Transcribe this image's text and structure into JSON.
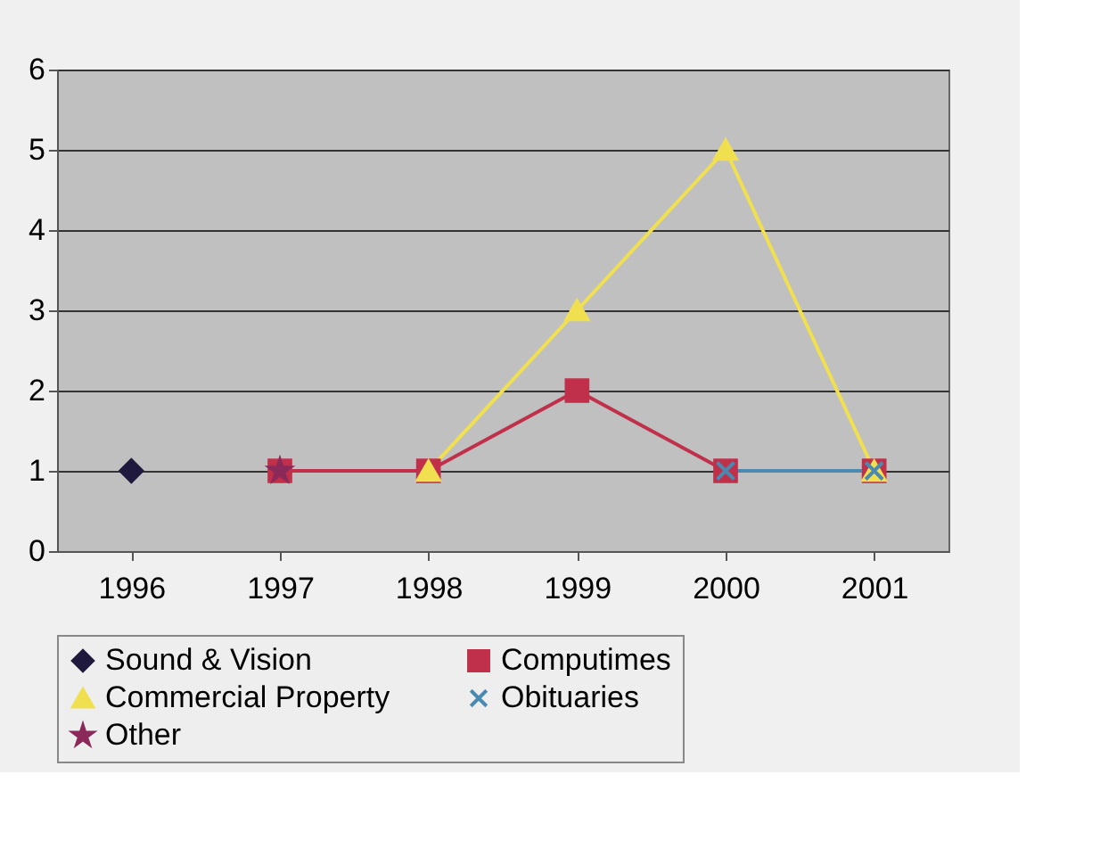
{
  "chart_data": {
    "type": "line",
    "categories": [
      "1996",
      "1997",
      "1998",
      "1999",
      "2000",
      "2001"
    ],
    "series": [
      {
        "name": "Sound & Vision",
        "color": "#1f1a3d",
        "marker": "diamond",
        "values": [
          1,
          null,
          null,
          null,
          null,
          null
        ]
      },
      {
        "name": "Computimes",
        "color": "#c0304a",
        "marker": "square",
        "values": [
          null,
          1,
          1,
          2,
          1,
          1
        ]
      },
      {
        "name": "Commercial Property",
        "color": "#f0e050",
        "marker": "triangle",
        "values": [
          null,
          null,
          1,
          3,
          5,
          1
        ]
      },
      {
        "name": "Obituaries",
        "color": "#4a8ab0",
        "marker": "cross",
        "values": [
          null,
          null,
          null,
          null,
          1,
          1
        ]
      },
      {
        "name": "Other",
        "color": "#8b2a5a",
        "marker": "star",
        "values": [
          null,
          1,
          null,
          null,
          null,
          null
        ]
      }
    ],
    "ylim": [
      0,
      6
    ],
    "yticks": [
      0,
      1,
      2,
      3,
      4,
      5,
      6
    ],
    "grid": "y",
    "legend": "bottom"
  }
}
